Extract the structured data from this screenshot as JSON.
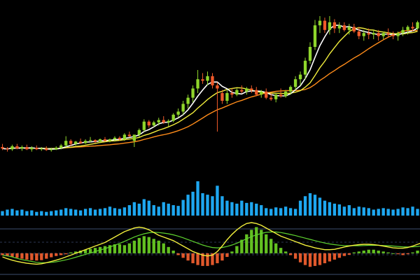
{
  "chart_data": {
    "type": "candlestick",
    "panels": [
      "price",
      "volume",
      "macd"
    ],
    "colors": {
      "background": "#000000",
      "up": "#8fd62b",
      "down": "#ef5a2a",
      "volume": "#1ea7f0",
      "ma_fast": "#ffffff",
      "ma_mid": "#f2ee3c",
      "ma_slow": "#ff8c1a",
      "macd_dif": "#f2ee3c",
      "macd_dea": "#5fd32f",
      "macd_pos": "#63c021",
      "macd_neg": "#e0582c",
      "divider": "#3c4e6e",
      "dashed": "#2c3852"
    },
    "price_range": [
      0,
      200
    ],
    "volume_range": [
      0,
      60
    ],
    "macd_range": [
      -1.4,
      1.7
    ],
    "candles": [
      {
        "o": 20,
        "h": 24,
        "l": 16,
        "c": 18
      },
      {
        "o": 18,
        "h": 20,
        "l": 14,
        "c": 17
      },
      {
        "o": 17,
        "h": 23,
        "l": 15,
        "c": 21
      },
      {
        "o": 21,
        "h": 24,
        "l": 17,
        "c": 18
      },
      {
        "o": 18,
        "h": 22,
        "l": 15,
        "c": 20
      },
      {
        "o": 20,
        "h": 23,
        "l": 16,
        "c": 17
      },
      {
        "o": 17,
        "h": 21,
        "l": 14,
        "c": 19
      },
      {
        "o": 19,
        "h": 22,
        "l": 16,
        "c": 17
      },
      {
        "o": 17,
        "h": 20,
        "l": 15,
        "c": 18
      },
      {
        "o": 18,
        "h": 21,
        "l": 15,
        "c": 16
      },
      {
        "o": 16,
        "h": 19,
        "l": 14,
        "c": 17
      },
      {
        "o": 17,
        "h": 21,
        "l": 16,
        "c": 19
      },
      {
        "o": 19,
        "h": 24,
        "l": 17,
        "c": 22
      },
      {
        "o": 22,
        "h": 34,
        "l": 20,
        "c": 28
      },
      {
        "o": 28,
        "h": 30,
        "l": 21,
        "c": 24
      },
      {
        "o": 24,
        "h": 28,
        "l": 22,
        "c": 27
      },
      {
        "o": 27,
        "h": 31,
        "l": 24,
        "c": 25
      },
      {
        "o": 25,
        "h": 30,
        "l": 24,
        "c": 28
      },
      {
        "o": 28,
        "h": 33,
        "l": 26,
        "c": 29
      },
      {
        "o": 29,
        "h": 30,
        "l": 25,
        "c": 27
      },
      {
        "o": 27,
        "h": 31,
        "l": 25,
        "c": 30
      },
      {
        "o": 30,
        "h": 33,
        "l": 27,
        "c": 28
      },
      {
        "o": 28,
        "h": 31,
        "l": 26,
        "c": 30
      },
      {
        "o": 30,
        "h": 34,
        "l": 27,
        "c": 32
      },
      {
        "o": 32,
        "h": 34,
        "l": 28,
        "c": 30
      },
      {
        "o": 30,
        "h": 38,
        "l": 28,
        "c": 36
      },
      {
        "o": 36,
        "h": 40,
        "l": 33,
        "c": 34
      },
      {
        "o": 28,
        "h": 36,
        "l": 20,
        "c": 36
      },
      {
        "o": 36,
        "h": 44,
        "l": 33,
        "c": 42
      },
      {
        "o": 42,
        "h": 56,
        "l": 40,
        "c": 53
      },
      {
        "o": 53,
        "h": 55,
        "l": 45,
        "c": 48
      },
      {
        "o": 48,
        "h": 54,
        "l": 46,
        "c": 52
      },
      {
        "o": 52,
        "h": 58,
        "l": 48,
        "c": 55
      },
      {
        "o": 55,
        "h": 60,
        "l": 50,
        "c": 52
      },
      {
        "o": 52,
        "h": 56,
        "l": 47,
        "c": 54
      },
      {
        "o": 54,
        "h": 64,
        "l": 52,
        "c": 62
      },
      {
        "o": 62,
        "h": 70,
        "l": 58,
        "c": 66
      },
      {
        "o": 66,
        "h": 80,
        "l": 62,
        "c": 76
      },
      {
        "o": 76,
        "h": 88,
        "l": 70,
        "c": 84
      },
      {
        "o": 84,
        "h": 100,
        "l": 78,
        "c": 96
      },
      {
        "o": 96,
        "h": 120,
        "l": 90,
        "c": 108
      },
      {
        "o": 108,
        "h": 116,
        "l": 102,
        "c": 106
      },
      {
        "o": 106,
        "h": 118,
        "l": 100,
        "c": 112
      },
      {
        "o": 112,
        "h": 116,
        "l": 96,
        "c": 100
      },
      {
        "o": 100,
        "h": 104,
        "l": 40,
        "c": 96
      },
      {
        "o": 90,
        "h": 94,
        "l": 76,
        "c": 80
      },
      {
        "o": 80,
        "h": 94,
        "l": 76,
        "c": 90
      },
      {
        "o": 90,
        "h": 96,
        "l": 84,
        "c": 88
      },
      {
        "o": 88,
        "h": 96,
        "l": 86,
        "c": 94
      },
      {
        "o": 94,
        "h": 100,
        "l": 90,
        "c": 92
      },
      {
        "o": 92,
        "h": 98,
        "l": 88,
        "c": 96
      },
      {
        "o": 96,
        "h": 100,
        "l": 90,
        "c": 94
      },
      {
        "o": 94,
        "h": 98,
        "l": 86,
        "c": 88
      },
      {
        "o": 88,
        "h": 94,
        "l": 84,
        "c": 92
      },
      {
        "o": 92,
        "h": 96,
        "l": 82,
        "c": 84
      },
      {
        "o": 84,
        "h": 90,
        "l": 80,
        "c": 82
      },
      {
        "o": 82,
        "h": 90,
        "l": 78,
        "c": 88
      },
      {
        "o": 88,
        "h": 96,
        "l": 84,
        "c": 86
      },
      {
        "o": 86,
        "h": 94,
        "l": 84,
        "c": 92
      },
      {
        "o": 92,
        "h": 100,
        "l": 88,
        "c": 98
      },
      {
        "o": 98,
        "h": 112,
        "l": 94,
        "c": 108
      },
      {
        "o": 108,
        "h": 118,
        "l": 100,
        "c": 114
      },
      {
        "o": 114,
        "h": 136,
        "l": 108,
        "c": 132
      },
      {
        "o": 132,
        "h": 156,
        "l": 128,
        "c": 150
      },
      {
        "o": 150,
        "h": 185,
        "l": 146,
        "c": 178
      },
      {
        "o": 178,
        "h": 190,
        "l": 168,
        "c": 184
      },
      {
        "o": 184,
        "h": 188,
        "l": 168,
        "c": 172
      },
      {
        "o": 172,
        "h": 190,
        "l": 166,
        "c": 182
      },
      {
        "o": 182,
        "h": 186,
        "l": 168,
        "c": 174
      },
      {
        "o": 174,
        "h": 182,
        "l": 168,
        "c": 178
      },
      {
        "o": 178,
        "h": 182,
        "l": 170,
        "c": 172
      },
      {
        "o": 172,
        "h": 180,
        "l": 166,
        "c": 176
      },
      {
        "o": 176,
        "h": 180,
        "l": 168,
        "c": 170
      },
      {
        "o": 170,
        "h": 176,
        "l": 160,
        "c": 164
      },
      {
        "o": 164,
        "h": 172,
        "l": 158,
        "c": 168
      },
      {
        "o": 168,
        "h": 174,
        "l": 160,
        "c": 166
      },
      {
        "o": 166,
        "h": 172,
        "l": 160,
        "c": 168
      },
      {
        "o": 168,
        "h": 172,
        "l": 158,
        "c": 164
      },
      {
        "o": 164,
        "h": 170,
        "l": 160,
        "c": 168
      },
      {
        "o": 168,
        "h": 174,
        "l": 162,
        "c": 166
      },
      {
        "o": 166,
        "h": 170,
        "l": 160,
        "c": 164
      },
      {
        "o": 164,
        "h": 170,
        "l": 158,
        "c": 168
      },
      {
        "o": 168,
        "h": 176,
        "l": 164,
        "c": 172
      },
      {
        "o": 172,
        "h": 178,
        "l": 166,
        "c": 176
      },
      {
        "o": 176,
        "h": 182,
        "l": 170,
        "c": 174
      },
      {
        "o": 174,
        "h": 184,
        "l": 172,
        "c": 182
      }
    ],
    "volume": [
      6,
      8,
      9,
      7,
      8,
      6,
      7,
      5,
      6,
      5,
      6,
      7,
      8,
      10,
      9,
      8,
      7,
      9,
      10,
      8,
      9,
      10,
      12,
      10,
      9,
      11,
      14,
      18,
      16,
      22,
      20,
      14,
      12,
      18,
      16,
      14,
      13,
      21,
      28,
      32,
      46,
      30,
      28,
      26,
      40,
      26,
      20,
      18,
      16,
      20,
      17,
      18,
      16,
      14,
      10,
      9,
      11,
      10,
      12,
      10,
      9,
      20,
      26,
      30,
      28,
      24,
      20,
      18,
      16,
      15,
      12,
      14,
      10,
      12,
      11,
      10,
      8,
      9,
      10,
      9,
      8,
      9,
      11,
      10,
      12,
      9,
      16,
      14,
      12,
      13
    ],
    "macd_hist": [
      -0.1,
      -0.15,
      -0.2,
      -0.25,
      -0.3,
      -0.35,
      -0.38,
      -0.4,
      -0.38,
      -0.3,
      -0.22,
      -0.15,
      -0.1,
      -0.05,
      0.05,
      0.1,
      0.15,
      0.2,
      0.25,
      0.3,
      0.35,
      0.4,
      0.45,
      0.5,
      0.5,
      0.45,
      0.55,
      0.7,
      0.85,
      0.95,
      0.9,
      0.8,
      0.7,
      0.55,
      0.35,
      0.15,
      -0.1,
      -0.25,
      -0.4,
      -0.55,
      -0.65,
      -0.7,
      -0.7,
      -0.65,
      -0.55,
      -0.4,
      -0.2,
      0.1,
      0.4,
      0.75,
      1.05,
      1.3,
      1.45,
      1.3,
      1.05,
      0.8,
      0.55,
      0.3,
      0.1,
      -0.1,
      -0.3,
      -0.5,
      -0.65,
      -0.75,
      -0.7,
      -0.65,
      -0.55,
      -0.45,
      -0.35,
      -0.25,
      -0.15,
      -0.08,
      0.05,
      0.1,
      0.15,
      0.2,
      0.2,
      0.15,
      0.1,
      0.05,
      0.0,
      -0.05,
      -0.1,
      -0.05,
      0.05,
      0.15,
      0.3,
      0.5,
      0.4,
      0.6
    ],
    "macd_dif": [
      -0.2,
      -0.3,
      -0.38,
      -0.45,
      -0.5,
      -0.55,
      -0.58,
      -0.6,
      -0.58,
      -0.52,
      -0.45,
      -0.38,
      -0.3,
      -0.2,
      -0.1,
      0.0,
      0.1,
      0.2,
      0.3,
      0.4,
      0.5,
      0.6,
      0.75,
      0.9,
      1.05,
      1.2,
      1.3,
      1.4,
      1.45,
      1.4,
      1.3,
      1.15,
      1.0,
      0.9,
      0.8,
      0.7,
      0.55,
      0.4,
      0.25,
      0.1,
      0.0,
      -0.1,
      -0.15,
      -0.1,
      0.1,
      0.4,
      0.75,
      1.05,
      1.3,
      1.5,
      1.65,
      1.7,
      1.65,
      1.55,
      1.4,
      1.25,
      1.1,
      0.95,
      0.85,
      0.75,
      0.65,
      0.55,
      0.45,
      0.38,
      0.3,
      0.25,
      0.2,
      0.2,
      0.22,
      0.28,
      0.35,
      0.4,
      0.45,
      0.48,
      0.5,
      0.5,
      0.48,
      0.45,
      0.4,
      0.35,
      0.3,
      0.28,
      0.28,
      0.32,
      0.4,
      0.5,
      0.6,
      0.7,
      0.78,
      0.85
    ],
    "macd_dea": [
      -0.1,
      -0.15,
      -0.2,
      -0.28,
      -0.35,
      -0.4,
      -0.45,
      -0.5,
      -0.52,
      -0.52,
      -0.5,
      -0.47,
      -0.42,
      -0.36,
      -0.3,
      -0.22,
      -0.14,
      -0.06,
      0.02,
      0.1,
      0.18,
      0.26,
      0.35,
      0.45,
      0.55,
      0.66,
      0.78,
      0.9,
      1.0,
      1.08,
      1.14,
      1.16,
      1.15,
      1.12,
      1.08,
      1.02,
      0.95,
      0.86,
      0.76,
      0.66,
      0.56,
      0.46,
      0.38,
      0.32,
      0.3,
      0.32,
      0.38,
      0.46,
      0.56,
      0.68,
      0.8,
      0.92,
      1.02,
      1.1,
      1.16,
      1.18,
      1.18,
      1.15,
      1.1,
      1.04,
      0.98,
      0.91,
      0.84,
      0.77,
      0.7,
      0.63,
      0.57,
      0.52,
      0.48,
      0.45,
      0.43,
      0.42,
      0.42,
      0.42,
      0.43,
      0.44,
      0.44,
      0.44,
      0.43,
      0.42,
      0.4,
      0.38,
      0.36,
      0.35,
      0.36,
      0.38,
      0.41,
      0.45,
      0.5,
      0.55
    ]
  }
}
